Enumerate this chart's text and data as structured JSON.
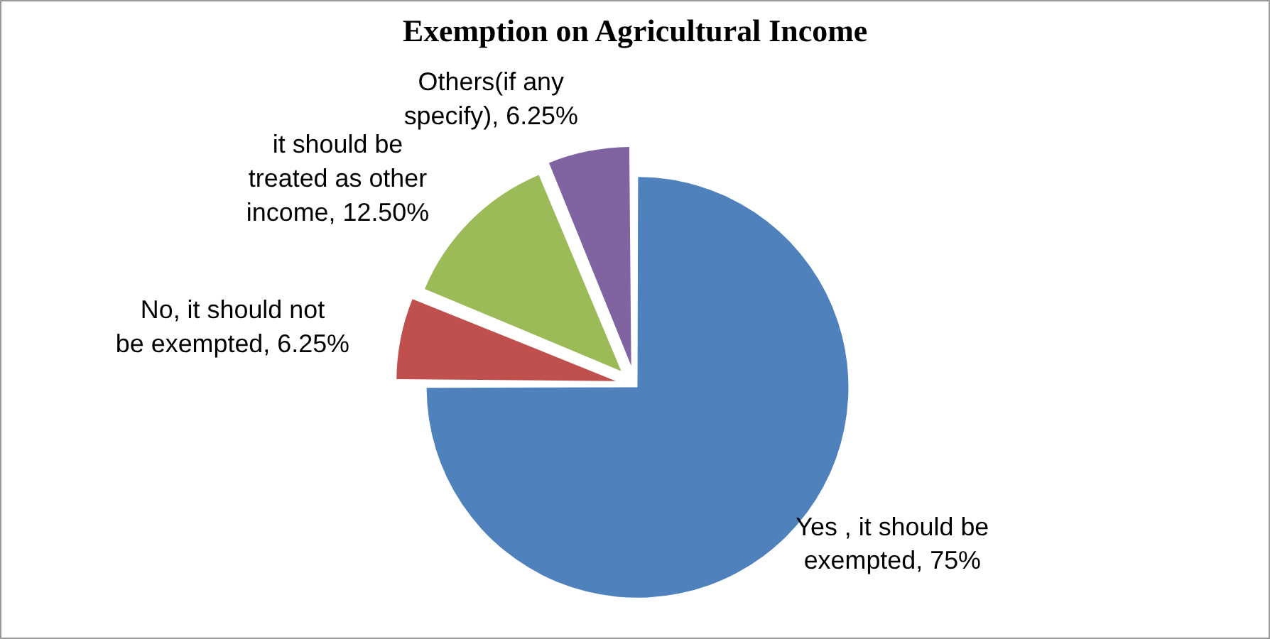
{
  "chart_data": {
    "type": "pie",
    "title": "Exemption on Agricultural Income",
    "categories": [
      "Yes , it should be exempted",
      "No, it should not be exempted",
      "it should be treated as other income",
      "Others(if any specify)"
    ],
    "values": [
      75,
      6.25,
      12.5,
      6.25
    ],
    "value_labels": [
      "75%",
      "6.25%",
      "12.50%",
      "6.25%"
    ],
    "colors": [
      "#4f81bd",
      "#c0504d",
      "#9bbb59",
      "#8064a2"
    ],
    "legend": false
  }
}
